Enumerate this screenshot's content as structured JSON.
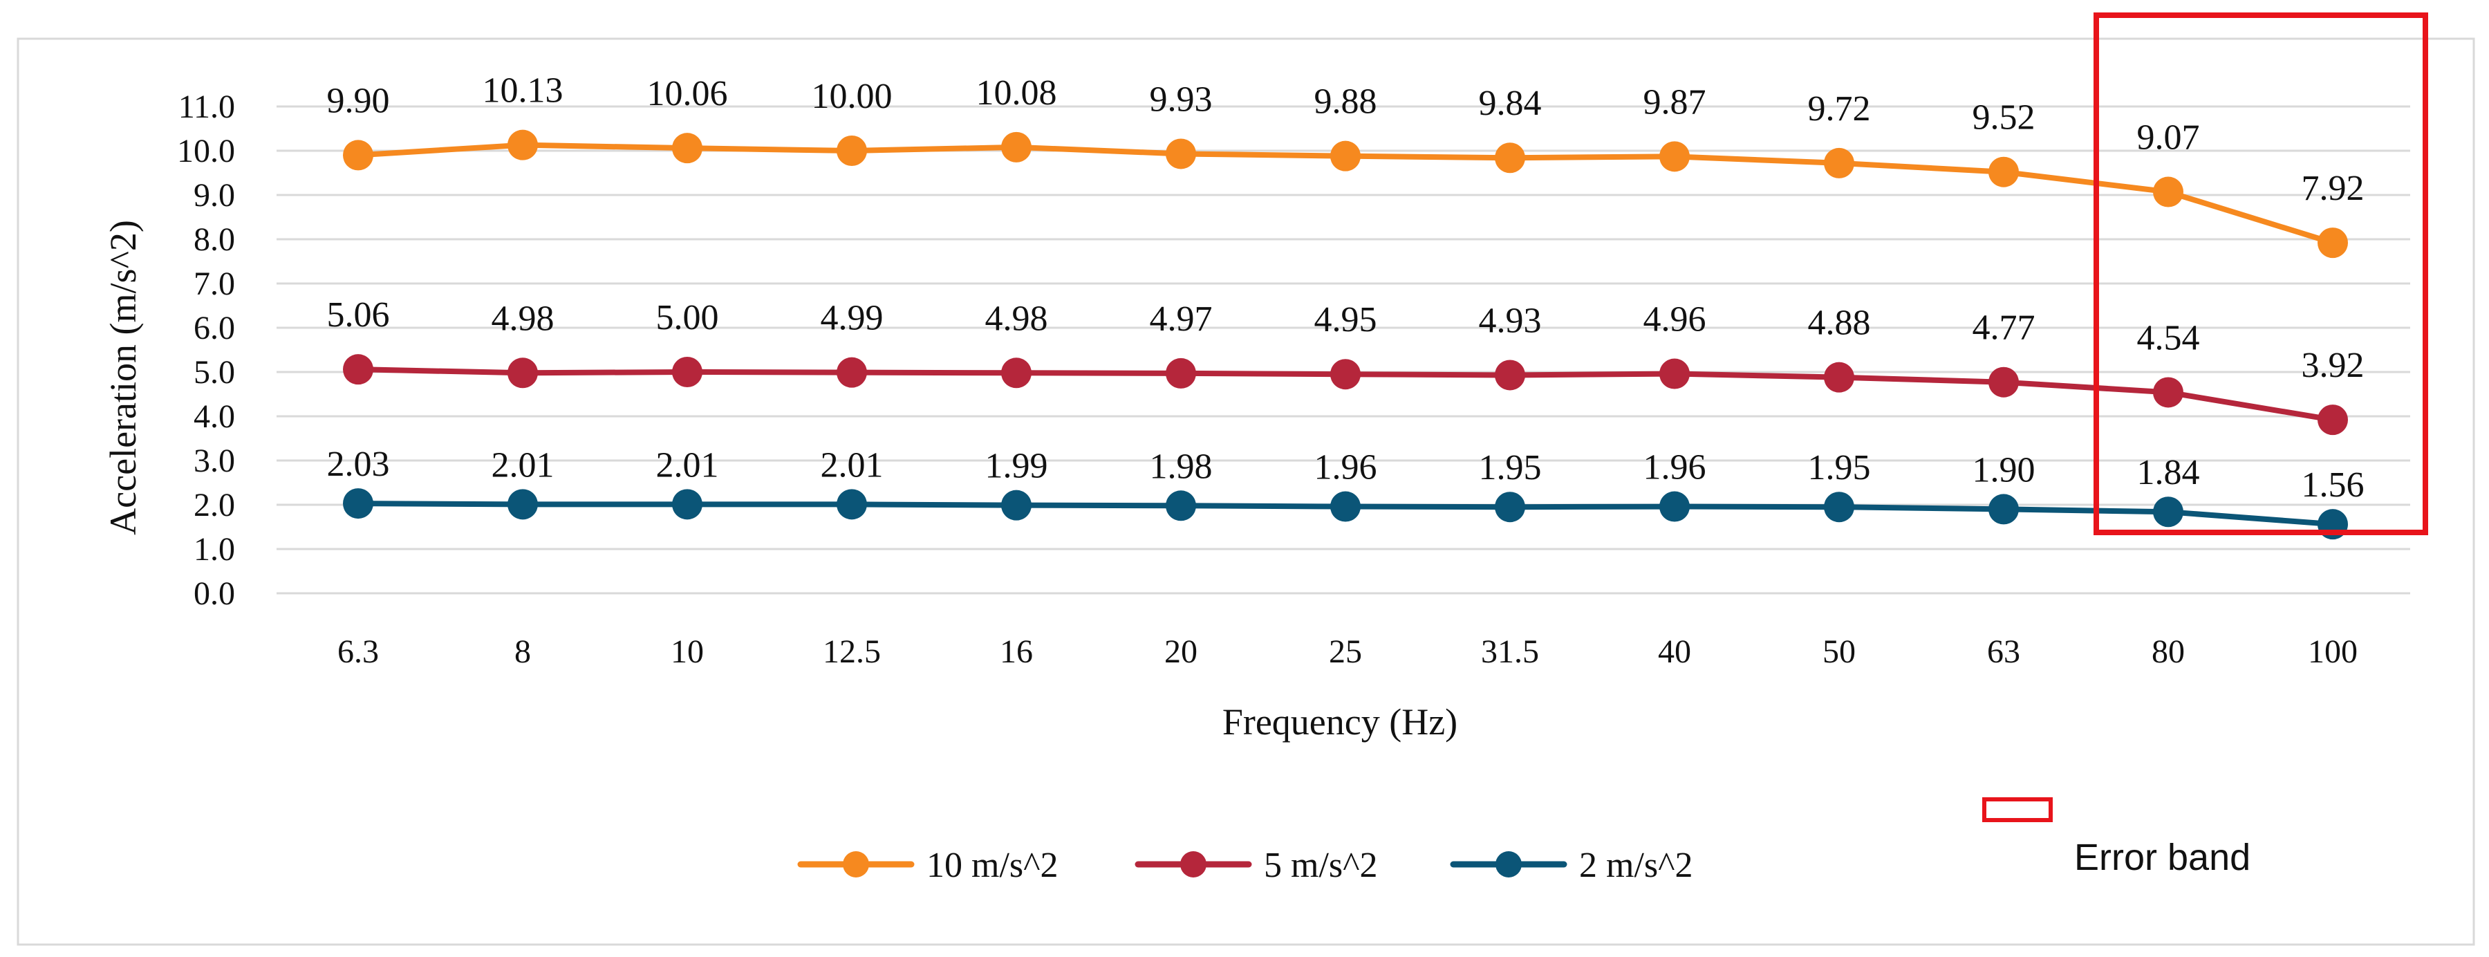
{
  "chart_data": {
    "type": "line",
    "title": "",
    "xlabel": "Frequency (Hz)",
    "ylabel": "Acceleration (m/s^2)",
    "categories": [
      "6.3",
      "8",
      "10",
      "12.5",
      "16",
      "20",
      "25",
      "31.5",
      "40",
      "50",
      "63",
      "80",
      "100"
    ],
    "ylim": [
      0,
      11
    ],
    "ytick_step": 1,
    "ytick_labels": [
      "0.0",
      "1.0",
      "2.0",
      "3.0",
      "4.0",
      "5.0",
      "6.0",
      "7.0",
      "8.0",
      "9.0",
      "10.0",
      "11.0"
    ],
    "grid": true,
    "legend_position": "bottom",
    "series": [
      {
        "name": "10 m/s^2",
        "color": "#F6891F",
        "values": [
          9.9,
          10.13,
          10.06,
          10.0,
          10.08,
          9.93,
          9.88,
          9.84,
          9.87,
          9.72,
          9.52,
          9.07,
          7.92
        ],
        "labels": [
          "9.90",
          "10.13",
          "10.06",
          "10.00",
          "10.08",
          "9.93",
          "9.88",
          "9.84",
          "9.87",
          "9.72",
          "9.52",
          "9.07",
          "7.92"
        ]
      },
      {
        "name": "5 m/s^2",
        "color": "#B5263B",
        "values": [
          5.06,
          4.98,
          5.0,
          4.99,
          4.98,
          4.97,
          4.95,
          4.93,
          4.96,
          4.88,
          4.77,
          4.54,
          3.92
        ],
        "labels": [
          "5.06",
          "4.98",
          "5.00",
          "4.99",
          "4.98",
          "4.97",
          "4.95",
          "4.93",
          "4.96",
          "4.88",
          "4.77",
          "4.54",
          "3.92"
        ]
      },
      {
        "name": "2 m/s^2",
        "color": "#0B5577",
        "values": [
          2.03,
          2.01,
          2.01,
          2.01,
          1.99,
          1.98,
          1.96,
          1.95,
          1.96,
          1.95,
          1.9,
          1.84,
          1.56
        ],
        "labels": [
          "2.03",
          "2.01",
          "2.01",
          "2.01",
          "1.99",
          "1.98",
          "1.96",
          "1.95",
          "1.96",
          "1.95",
          "1.90",
          "1.84",
          "1.56"
        ]
      }
    ],
    "annotations": [
      {
        "type": "rectangle",
        "label": "Error band",
        "color": "#E8141B",
        "covers_categories": [
          "80",
          "100"
        ]
      }
    ]
  }
}
